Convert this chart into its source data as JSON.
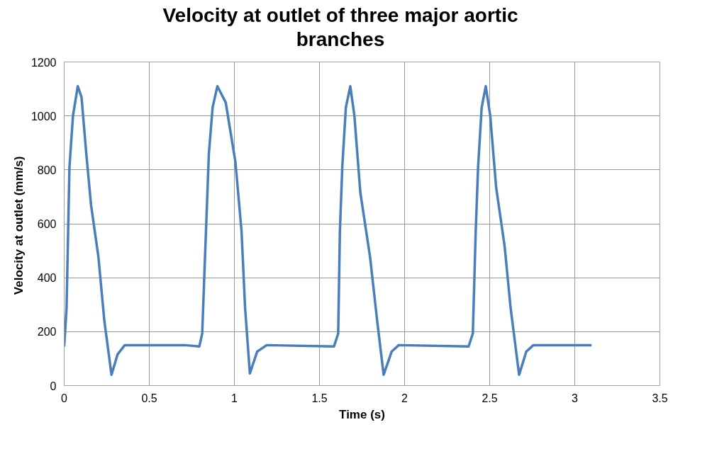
{
  "chart_data": {
    "type": "line",
    "title": "Velocity at outlet of three major aortic branches",
    "xlabel": "Time (s)",
    "ylabel": "Velocity  at outlet (mm/s)",
    "xlim": [
      0,
      3.5
    ],
    "xticks": [
      0,
      0.5,
      1,
      1.5,
      2,
      2.5,
      3,
      3.5
    ],
    "ylim": [
      0,
      1200
    ],
    "yticks": [
      0,
      200,
      400,
      600,
      800,
      1000,
      1200
    ],
    "grid": true,
    "line_style": "solid",
    "series": [
      {
        "color": "#4a7ebb",
        "x": [
          0.0,
          0.014,
          0.031,
          0.052,
          0.08,
          0.102,
          0.13,
          0.158,
          0.201,
          0.236,
          0.278,
          0.314,
          0.356,
          0.709,
          0.794,
          0.811,
          0.822,
          0.85,
          0.872,
          0.9,
          0.949,
          1.006,
          1.042,
          1.063,
          1.091,
          1.134,
          1.19,
          1.585,
          1.61,
          1.62,
          1.634,
          1.655,
          1.681,
          1.705,
          1.74,
          1.797,
          1.839,
          1.877,
          1.924,
          1.966,
          2.376,
          2.401,
          2.418,
          2.432,
          2.453,
          2.477,
          2.503,
          2.538,
          2.588,
          2.623,
          2.673,
          2.715,
          2.757,
          3.099
        ],
        "values": [
          145,
          288,
          811,
          1002,
          1110,
          1069,
          859,
          669,
          478,
          240,
          40,
          116,
          150,
          150,
          145,
          193,
          383,
          859,
          1031,
          1110,
          1050,
          830,
          573,
          288,
          45,
          126,
          150,
          145,
          193,
          573,
          811,
          1031,
          1110,
          1002,
          716,
          478,
          240,
          40,
          126,
          150,
          145,
          193,
          573,
          811,
          1031,
          1110,
          1002,
          735,
          516,
          288,
          40,
          126,
          150,
          150
        ]
      }
    ]
  }
}
